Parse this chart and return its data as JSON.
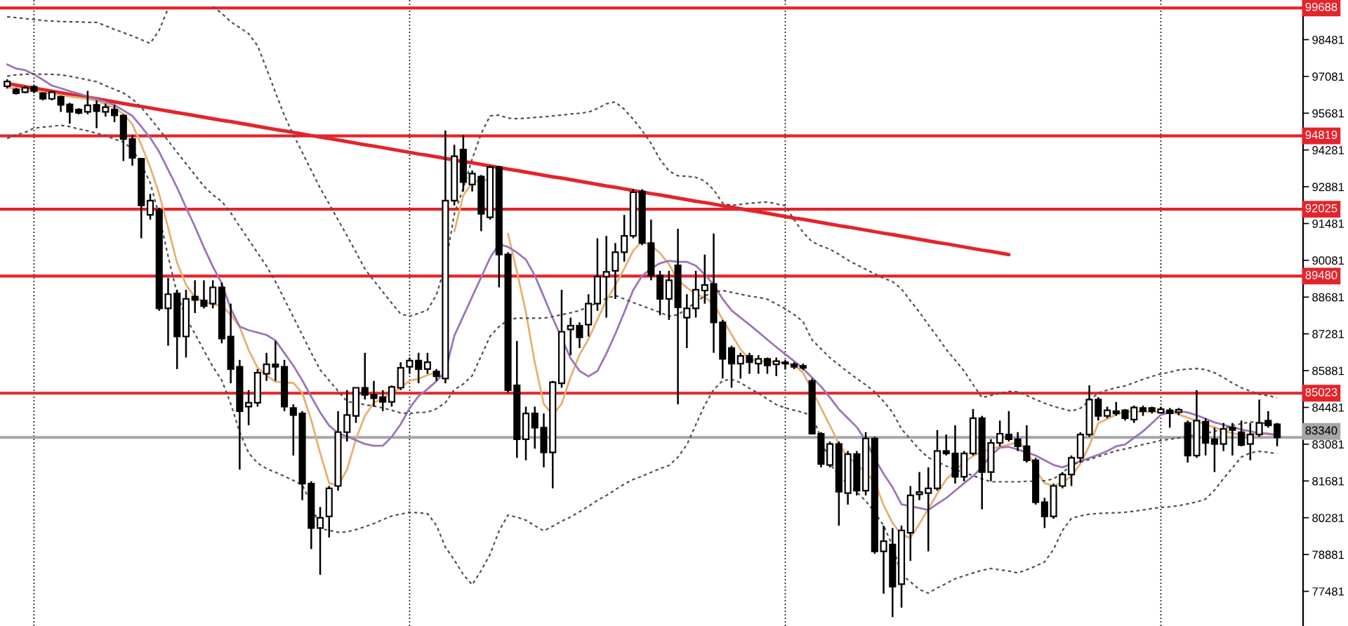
{
  "chart_data": {
    "type": "candlestick",
    "categories": [
      null,
      null,
      null,
      null,
      null,
      null,
      null,
      null,
      null,
      null,
      null,
      null,
      null,
      null,
      null,
      null,
      null,
      null,
      null,
      null,
      null,
      null,
      null,
      null,
      null,
      null,
      null,
      null,
      null,
      null,
      null,
      null,
      null,
      null,
      null,
      null,
      null,
      null,
      null,
      null,
      null,
      null,
      null,
      null,
      null,
      null,
      null,
      null,
      null,
      null,
      null,
      null,
      null,
      null,
      null,
      null,
      null,
      null,
      null,
      null,
      null,
      null,
      null,
      null,
      null,
      null,
      null,
      null,
      null,
      null,
      null,
      null,
      null,
      null,
      null,
      null,
      null,
      null,
      null,
      null,
      null,
      null,
      null,
      null,
      null,
      null,
      null,
      null,
      null,
      null,
      null,
      null,
      null,
      null,
      null,
      null,
      null,
      null,
      null,
      null,
      null,
      null,
      null,
      null,
      null,
      null,
      null,
      null,
      null,
      null,
      null,
      null,
      null,
      null,
      null,
      null,
      null,
      null,
      null,
      null,
      null,
      null,
      null,
      null,
      null,
      null,
      null,
      null,
      null,
      null,
      null,
      null,
      null,
      null,
      null,
      null,
      null,
      null,
      null,
      null,
      null,
      null,
      null
    ],
    "ohlc": [
      [
        96710,
        96970,
        96620,
        96890
      ],
      [
        96580,
        96650,
        96390,
        96440
      ],
      [
        96480,
        96710,
        96440,
        96650
      ],
      [
        96690,
        96740,
        96440,
        96530
      ],
      [
        96440,
        96480,
        96170,
        96230
      ],
      [
        96230,
        96530,
        96170,
        96480
      ],
      [
        96300,
        96350,
        95730,
        96000
      ],
      [
        96010,
        96080,
        95280,
        95730
      ],
      [
        95820,
        95870,
        95640,
        95690
      ],
      [
        95730,
        96530,
        95640,
        95980
      ],
      [
        96000,
        96170,
        95110,
        95760
      ],
      [
        95730,
        96050,
        95550,
        95910
      ],
      [
        95820,
        96000,
        95340,
        95600
      ],
      [
        95590,
        95640,
        93860,
        94700
      ],
      [
        94700,
        94840,
        93680,
        93980
      ],
      [
        93950,
        93980,
        90920,
        92170
      ],
      [
        91810,
        92610,
        91630,
        92350
      ],
      [
        91990,
        92080,
        88160,
        88250
      ],
      [
        88250,
        89410,
        86830,
        88790
      ],
      [
        88820,
        88960,
        85940,
        87180
      ],
      [
        87180,
        88960,
        86380,
        88610
      ],
      [
        88700,
        89320,
        88070,
        88570
      ],
      [
        88550,
        89320,
        88250,
        88340
      ],
      [
        88430,
        89320,
        88250,
        89050
      ],
      [
        89050,
        89230,
        86920,
        87100
      ],
      [
        87180,
        88430,
        85400,
        85940
      ],
      [
        86030,
        86290,
        82110,
        84340
      ],
      [
        84510,
        85140,
        83800,
        84660
      ],
      [
        84660,
        85940,
        84510,
        85800
      ],
      [
        85760,
        86560,
        85490,
        86120
      ],
      [
        86120,
        87010,
        85490,
        86030
      ],
      [
        86030,
        86290,
        84340,
        84510
      ],
      [
        84460,
        84600,
        82650,
        84190
      ],
      [
        84250,
        84340,
        80950,
        81580
      ],
      [
        81580,
        81670,
        79090,
        79890
      ],
      [
        79890,
        80690,
        78110,
        80280
      ],
      [
        80330,
        81490,
        79530,
        81400
      ],
      [
        81490,
        84340,
        81310,
        83540
      ],
      [
        83540,
        85140,
        83180,
        84190
      ],
      [
        84160,
        85230,
        83890,
        85230
      ],
      [
        85230,
        86560,
        84780,
        84960
      ],
      [
        84960,
        85490,
        84510,
        84830
      ],
      [
        84870,
        85140,
        84340,
        84690
      ],
      [
        84690,
        85320,
        84510,
        85260
      ],
      [
        85230,
        86200,
        85140,
        85990
      ],
      [
        86030,
        86380,
        85760,
        86260
      ],
      [
        86260,
        86560,
        85400,
        85940
      ],
      [
        85940,
        86560,
        85760,
        86200
      ],
      [
        85850,
        85940,
        85490,
        85670
      ],
      [
        85580,
        95020,
        85400,
        92350
      ],
      [
        92350,
        94480,
        92170,
        94040
      ],
      [
        94300,
        94840,
        92700,
        93060
      ],
      [
        92970,
        93500,
        92700,
        93380
      ],
      [
        93270,
        93330,
        91190,
        91850
      ],
      [
        91720,
        93680,
        91630,
        93630
      ],
      [
        93630,
        93680,
        89050,
        90300
      ],
      [
        90300,
        90390,
        85050,
        85140
      ],
      [
        85320,
        87010,
        82560,
        83270
      ],
      [
        83270,
        84510,
        82470,
        84250
      ],
      [
        84250,
        84510,
        82910,
        83710
      ],
      [
        83710,
        84250,
        82200,
        82770
      ],
      [
        82770,
        85490,
        81400,
        85440
      ],
      [
        85400,
        88960,
        85230,
        87360
      ],
      [
        87450,
        87900,
        86470,
        87590
      ],
      [
        87590,
        87720,
        86740,
        87150
      ],
      [
        87630,
        88790,
        87180,
        88430
      ],
      [
        88430,
        90920,
        88160,
        89460
      ],
      [
        89460,
        91010,
        87900,
        89640
      ],
      [
        89680,
        90740,
        88610,
        90390
      ],
      [
        90390,
        91810,
        90030,
        91010
      ],
      [
        91010,
        92790,
        90920,
        92670
      ],
      [
        92700,
        92790,
        90660,
        90740
      ],
      [
        90740,
        91630,
        89320,
        89500
      ],
      [
        89500,
        89680,
        87990,
        88610
      ],
      [
        88610,
        89680,
        87810,
        89320
      ],
      [
        89890,
        91280,
        84600,
        88290
      ],
      [
        87900,
        88790,
        86740,
        88250
      ],
      [
        88250,
        89680,
        87900,
        88960
      ],
      [
        88930,
        90300,
        88430,
        89140
      ],
      [
        89180,
        91100,
        86560,
        87720
      ],
      [
        87720,
        87810,
        85580,
        86330
      ],
      [
        86740,
        86830,
        85230,
        86150
      ],
      [
        86150,
        86560,
        85580,
        86440
      ],
      [
        86440,
        86560,
        85760,
        86200
      ],
      [
        86150,
        86470,
        85760,
        86330
      ],
      [
        86330,
        86380,
        85760,
        86080
      ],
      [
        86120,
        86380,
        85670,
        86240
      ],
      [
        86200,
        86290,
        85940,
        86150
      ],
      [
        86120,
        86200,
        85940,
        86030
      ],
      [
        86060,
        86150,
        85900,
        85990
      ],
      [
        85490,
        85580,
        83450,
        83480
      ],
      [
        83480,
        83540,
        82200,
        82330
      ],
      [
        82290,
        83180,
        82200,
        83090
      ],
      [
        83090,
        83180,
        79980,
        81270
      ],
      [
        81220,
        82820,
        80780,
        82700
      ],
      [
        82700,
        82820,
        81130,
        81310
      ],
      [
        81310,
        83540,
        81130,
        83300
      ],
      [
        83300,
        83360,
        78910,
        79000
      ],
      [
        79000,
        79980,
        77390,
        79390
      ],
      [
        79260,
        79890,
        76500,
        77660
      ],
      [
        77750,
        79980,
        76860,
        79800
      ],
      [
        79710,
        81490,
        78640,
        81130
      ],
      [
        81170,
        82020,
        80950,
        81260
      ],
      [
        81220,
        82200,
        79000,
        81400
      ],
      [
        81400,
        83620,
        81310,
        82820
      ],
      [
        82820,
        83450,
        82650,
        82730
      ],
      [
        82730,
        83800,
        81580,
        81840
      ],
      [
        81840,
        82820,
        81670,
        82730
      ],
      [
        82730,
        84420,
        82650,
        84070
      ],
      [
        84070,
        84160,
        80600,
        82020
      ],
      [
        82020,
        83270,
        81670,
        83130
      ],
      [
        83130,
        83980,
        83000,
        83480
      ],
      [
        83450,
        84340,
        83180,
        83270
      ],
      [
        83270,
        83540,
        82820,
        83000
      ],
      [
        83000,
        83800,
        82380,
        82470
      ],
      [
        82470,
        82560,
        80780,
        80870
      ],
      [
        80870,
        81040,
        79890,
        80330
      ],
      [
        80330,
        81580,
        80240,
        81490
      ],
      [
        81490,
        82020,
        81400,
        81930
      ],
      [
        81930,
        82650,
        81490,
        82560
      ],
      [
        82560,
        83540,
        82380,
        83450
      ],
      [
        83450,
        85320,
        83360,
        84780
      ],
      [
        84780,
        84870,
        83980,
        84160
      ],
      [
        84160,
        84510,
        84070,
        84370
      ],
      [
        84340,
        84690,
        84160,
        84250
      ],
      [
        84370,
        84420,
        83980,
        84070
      ],
      [
        84020,
        84550,
        83890,
        84480
      ],
      [
        84460,
        84550,
        84160,
        84340
      ],
      [
        84460,
        84510,
        84250,
        84340
      ],
      [
        84280,
        84510,
        84250,
        84410
      ],
      [
        84370,
        84460,
        83710,
        84260
      ],
      [
        84300,
        84460,
        84190,
        84390
      ],
      [
        83890,
        83980,
        82380,
        82650
      ],
      [
        82650,
        85140,
        82560,
        83980
      ],
      [
        83940,
        84070,
        82650,
        83130
      ],
      [
        83270,
        83710,
        82020,
        83090
      ],
      [
        83090,
        83890,
        82820,
        83660
      ],
      [
        83710,
        83890,
        82650,
        83620
      ],
      [
        83540,
        83980,
        83000,
        83050
      ],
      [
        83090,
        83890,
        82470,
        83450
      ],
      [
        83450,
        84780,
        83360,
        83890
      ],
      [
        83980,
        84340,
        83710,
        83800
      ],
      [
        83840,
        83890,
        83000,
        83340
      ]
    ],
    "colors": [
      "#ffffff",
      "#000000",
      "#ffffff",
      "#000000",
      "#000000",
      "#ffffff",
      "#000000",
      "#000000",
      "#000000",
      "#ffffff",
      "#000000",
      "#ffffff",
      "#000000",
      "#000000",
      "#000000",
      "#000000",
      "#ffffff",
      "#000000",
      "#ffffff",
      "#000000",
      "#ffffff",
      "#000000",
      "#000000",
      "#ffffff",
      "#000000",
      "#000000",
      "#000000",
      "#ffffff",
      "#ffffff",
      "#ffffff",
      "#000000",
      "#000000",
      "#000000",
      "#000000",
      "#000000",
      "#ffffff",
      "#ffffff",
      "#ffffff",
      "#ffffff",
      "#ffffff",
      "#000000",
      "#000000",
      "#000000",
      "#ffffff",
      "#ffffff",
      "#ffffff",
      "#000000",
      "#ffffff",
      "#000000",
      "#ffffff",
      "#ffffff",
      "#000000",
      "#ffffff",
      "#000000",
      "#ffffff",
      "#000000",
      "#000000",
      "#000000",
      "#ffffff",
      "#000000",
      "#000000",
      "#ffffff",
      "#ffffff",
      "#ffffff",
      "#000000",
      "#ffffff",
      "#ffffff",
      "#ffffff",
      "#ffffff",
      "#ffffff",
      "#ffffff",
      "#000000",
      "#000000",
      "#000000",
      "#ffffff",
      "#000000",
      "#ffffff",
      "#ffffff",
      "#ffffff",
      "#000000",
      "#000000",
      "#000000",
      "#ffffff",
      "#000000",
      "#ffffff",
      "#000000",
      "#ffffff",
      "#000000",
      "#000000",
      "#000000",
      "#000000",
      "#000000",
      "#ffffff",
      "#000000",
      "#ffffff",
      "#000000",
      "#ffffff",
      "#000000",
      "#ffffff",
      "#000000",
      "#ffffff",
      "#ffffff",
      "#ffffff",
      "#ffffff",
      "#ffffff",
      "#000000",
      "#000000",
      "#ffffff",
      "#ffffff",
      "#000000",
      "#ffffff",
      "#ffffff",
      "#000000",
      "#000000",
      "#000000",
      "#000000",
      "#000000",
      "#ffffff",
      "#ffffff",
      "#ffffff",
      "#ffffff",
      "#ffffff",
      "#000000",
      "#ffffff",
      "#000000",
      "#000000",
      "#ffffff",
      "#000000",
      "#000000",
      "#ffffff",
      "#000000",
      "#ffffff",
      "#000000",
      "#ffffff",
      "#000000",
      "#000000",
      "#ffffff",
      "#000000",
      "#000000",
      "#ffffff",
      "#ffffff",
      "#000000",
      "#000000"
    ],
    "series": [
      {
        "type": "line",
        "color": "#e3242b",
        "line_style": "solid",
        "values": [
          96810,
          96750,
          96690,
          96630,
          96580,
          96520,
          96460,
          96400,
          96340,
          96290,
          96230,
          96170,
          96110,
          96050,
          95990,
          95940,
          95880,
          95820,
          95760,
          95700,
          95650,
          95590,
          95530,
          95470,
          95410,
          95360,
          95300,
          95240,
          95180,
          95120,
          95060,
          95010,
          94950,
          94890,
          94830,
          94770,
          94720,
          94660,
          94600,
          94540,
          94480,
          94430,
          94370,
          94310,
          94250,
          94190,
          94130,
          94080,
          94020,
          93960,
          93900,
          93840,
          93790,
          93730,
          93670,
          93610,
          93550,
          93500,
          93440,
          93380,
          93320,
          93260,
          93210,
          93150,
          93090,
          93030,
          92970,
          92910,
          92860,
          92800,
          92740,
          92680,
          92620,
          92570,
          92510,
          92450,
          92390,
          92330,
          92280,
          92220,
          92160,
          92100,
          92040,
          91980,
          91930,
          91870,
          91810,
          91750,
          91690,
          91640,
          91580,
          91520,
          91460,
          91400,
          91350,
          91290,
          91230,
          91170,
          91110,
          91060,
          91000,
          90940,
          90880,
          90820,
          90760,
          90710,
          90650,
          90590,
          90530,
          90470,
          90420,
          90360,
          90300,
          null,
          null,
          null,
          null,
          null,
          null,
          null,
          null,
          null,
          null,
          null,
          null,
          null,
          null,
          null,
          null,
          null,
          null,
          null,
          null,
          null,
          null,
          null,
          null,
          null,
          null,
          null,
          null,
          null,
          null
        ]
      },
      {
        "type": "line",
        "color": "#e6b070",
        "line_style": "solid",
        "values": [
          96660,
          96630,
          96570,
          96520,
          96470,
          96410,
          96360,
          96310,
          96270,
          96220,
          96160,
          96020,
          95880,
          95650,
          95260,
          94470,
          93620,
          92600,
          91320,
          89980,
          89150,
          88670,
          88510,
          88400,
          88350,
          88010,
          87540,
          86670,
          85990,
          85690,
          85460,
          85430,
          85410,
          85030,
          84000,
          82740,
          81600,
          81510,
          82110,
          83270,
          84160,
          84660,
          84820,
          85030,
          85230,
          85500,
          85570,
          85710,
          85820,
          null,
          91180,
          92550,
          93030,
          93150,
          93120,
          null,
          91090,
          89650,
          88110,
          86190,
          84610,
          84200,
          84620,
          85640,
          86490,
          87080,
          87830,
          88560,
          89130,
          89770,
          90450,
          90800,
          90640,
          90360,
          89930,
          89330,
          89040,
          88790,
          88670,
          88420,
          87830,
          87260,
          86690,
          86320,
          86240,
          86230,
          86210,
          86160,
          86080,
          85800,
          85140,
          84460,
          83790,
          83090,
          82590,
          82330,
          81990,
          81650,
          80760,
          80080,
          79640,
          79510,
          80050,
          80620,
          81200,
          81740,
          82080,
          82400,
          82630,
          82790,
          82900,
          82980,
          83070,
          83150,
          82910,
          82090,
          81600,
          81490,
          81630,
          81860,
          82340,
          83020,
          83880,
          84040,
          84210,
          84320,
          84320,
          84320,
          84320,
          84320,
          84320,
          84210,
          84090,
          83960,
          83820,
          83730,
          83590,
          83500,
          83430,
          83450,
          83500,
          83500,
          83430
        ]
      },
      {
        "type": "line",
        "color": "#9b75b8",
        "line_style": "solid",
        "values": [
          97540,
          97380,
          97320,
          97160,
          96950,
          96730,
          96630,
          96520,
          96430,
          96320,
          96220,
          96110,
          95990,
          95790,
          95580,
          95170,
          94740,
          94210,
          93530,
          92850,
          92090,
          91360,
          90570,
          89840,
          89200,
          88240,
          87560,
          87420,
          87330,
          87240,
          87030,
          86550,
          86070,
          85510,
          84890,
          84290,
          83790,
          83500,
          83380,
          83230,
          83090,
          83020,
          83020,
          83360,
          83840,
          84450,
          84910,
          85180,
          85480,
          85850,
          87210,
          87950,
          88700,
          89430,
          90180,
          90700,
          90590,
          90380,
          90110,
          89500,
          88700,
          87880,
          87120,
          86350,
          85870,
          85660,
          85870,
          86530,
          87280,
          88100,
          88950,
          89490,
          89770,
          89970,
          90060,
          90020,
          90020,
          89880,
          89540,
          89150,
          88610,
          88170,
          87900,
          87630,
          87350,
          87060,
          86780,
          86510,
          86240,
          85960,
          85620,
          85280,
          84860,
          84410,
          84070,
          83730,
          83220,
          82540,
          81950,
          81440,
          80790,
          80720,
          80650,
          80580,
          80810,
          81030,
          81310,
          81600,
          81860,
          82220,
          82660,
          82950,
          82980,
          82880,
          82770,
          82650,
          82470,
          82290,
          82200,
          82330,
          82430,
          82560,
          82680,
          82820,
          83000,
          83070,
          83320,
          83570,
          83880,
          84200,
          84290,
          84340,
          84290,
          84180,
          84050,
          83910,
          83820,
          83730,
          83640,
          83570,
          83500,
          83470,
          83430
        ]
      },
      {
        "type": "line",
        "color": "#505050",
        "line_style": "dotted",
        "values": [
          99350,
          99320,
          99280,
          99250,
          99210,
          99190,
          99170,
          99160,
          99160,
          99140,
          99140,
          99010,
          98870,
          98750,
          98620,
          98480,
          98340,
          98840,
          99670,
          null,
          null,
          null,
          null,
          99740,
          99480,
          99160,
          98940,
          98710,
          98250,
          97380,
          96470,
          95590,
          94860,
          94190,
          93510,
          92830,
          92230,
          91620,
          91020,
          90390,
          89750,
          89310,
          88880,
          88450,
          88040,
          87950,
          88060,
          88190,
          88770,
          89900,
          91850,
          92820,
          93940,
          94900,
          95580,
          95610,
          95490,
          95470,
          95490,
          95520,
          95540,
          95580,
          95610,
          95650,
          95680,
          95720,
          95860,
          96040,
          96110,
          95830,
          95450,
          95020,
          94530,
          93920,
          93480,
          93300,
          93280,
          93240,
          93100,
          92760,
          92260,
          92170,
          92210,
          92250,
          92280,
          92300,
          92230,
          92160,
          91620,
          91140,
          90790,
          90630,
          90500,
          90310,
          90090,
          89910,
          89740,
          89570,
          89400,
          89270,
          88990,
          88540,
          88110,
          87630,
          87170,
          86690,
          86280,
          85870,
          85350,
          84850,
          84940,
          85020,
          85090,
          85070,
          84930,
          84780,
          84640,
          84520,
          84430,
          84340,
          84450,
          84730,
          85030,
          85140,
          85230,
          85300,
          85420,
          85550,
          85660,
          85760,
          85820,
          85910,
          85940,
          85960,
          85920,
          85800,
          85620,
          85410,
          85230,
          85100,
          84980,
          84930,
          84850
        ]
      },
      {
        "type": "line",
        "color": "#505050",
        "line_style": "dotted",
        "values": [
          97090,
          97140,
          97160,
          97180,
          97160,
          97160,
          97140,
          97090,
          97020,
          96950,
          96880,
          96730,
          96590,
          96450,
          96220,
          95900,
          95490,
          95060,
          94630,
          94190,
          93760,
          93330,
          92900,
          92570,
          92320,
          91890,
          91370,
          90870,
          90360,
          89860,
          89270,
          88600,
          87920,
          87240,
          86560,
          85910,
          85510,
          85100,
          84710,
          84640,
          84590,
          84530,
          84460,
          84370,
          84270,
          84250,
          84290,
          84300,
          84430,
          84660,
          85160,
          85370,
          85690,
          86440,
          87190,
          87560,
          87810,
          87880,
          87880,
          87880,
          87880,
          87940,
          88010,
          88080,
          88170,
          88310,
          88470,
          88630,
          88740,
          88610,
          88470,
          88350,
          88220,
          88100,
          87950,
          88010,
          88240,
          88490,
          88720,
          88880,
          88930,
          88860,
          88790,
          88720,
          88670,
          88600,
          88420,
          88240,
          88010,
          87740,
          87050,
          86710,
          86370,
          86100,
          85830,
          85580,
          85340,
          85070,
          84710,
          84290,
          83660,
          83270,
          82880,
          82570,
          82410,
          82250,
          82110,
          82010,
          81880,
          81760,
          81650,
          81650,
          81650,
          81650,
          81670,
          81670,
          81690,
          81760,
          81990,
          82290,
          82400,
          82500,
          82610,
          82720,
          82830,
          82900,
          82980,
          83070,
          83140,
          83220,
          83270,
          83320,
          83380,
          83430,
          83500,
          83570,
          83680,
          83790,
          83860,
          83930,
          83890,
          83860,
          83790
        ]
      },
      {
        "type": "line",
        "color": "#505050",
        "line_style": "dotted",
        "values": [
          94720,
          94850,
          94950,
          95110,
          95150,
          95180,
          95220,
          95170,
          95080,
          95010,
          94920,
          94830,
          94690,
          94580,
          94310,
          93740,
          93030,
          91770,
          90230,
          88810,
          87900,
          87280,
          86650,
          86030,
          85510,
          84620,
          83540,
          82750,
          82360,
          82150,
          82010,
          81860,
          81700,
          81520,
          80830,
          79870,
          79800,
          79730,
          79740,
          79830,
          79940,
          80060,
          80210,
          80350,
          80420,
          80490,
          80470,
          80440,
          79990,
          79160,
          78670,
          78120,
          77730,
          78270,
          78890,
          79780,
          80380,
          80300,
          80190,
          79980,
          79780,
          79960,
          80150,
          80310,
          80510,
          80720,
          80940,
          81130,
          81350,
          81560,
          81740,
          81860,
          82010,
          82150,
          82270,
          82590,
          83060,
          83820,
          84570,
          85160,
          85500,
          85550,
          85420,
          85210,
          85020,
          84800,
          84590,
          84460,
          84370,
          84290,
          84160,
          83320,
          82340,
          81880,
          81580,
          81260,
          80920,
          80490,
          79980,
          79210,
          78120,
          77840,
          77550,
          77410,
          77610,
          77780,
          77960,
          78070,
          78180,
          78280,
          78350,
          78300,
          78250,
          78180,
          78300,
          78440,
          78600,
          79080,
          79800,
          80260,
          80350,
          80420,
          80440,
          80460,
          80470,
          80490,
          80530,
          80580,
          80630,
          80670,
          80700,
          80740,
          80810,
          80880,
          80990,
          81330,
          81770,
          82180,
          82590,
          82750,
          82810,
          82770,
          82720
        ]
      }
    ],
    "ylim": [
      76160,
      99990
    ],
    "yticks": [
      77481,
      78881,
      80281,
      81681,
      83081,
      84481,
      85881,
      87281,
      88681,
      90081,
      91481,
      92881,
      94281,
      95681,
      97081,
      98481
    ],
    "ref_lines": [
      {
        "axis": "y",
        "value": 99688,
        "label": "99688",
        "color": "#e3242b"
      },
      {
        "axis": "y",
        "value": 94819,
        "label": "94819",
        "color": "#e3242b"
      },
      {
        "axis": "y",
        "value": 92025,
        "label": "92025",
        "color": "#e3242b"
      },
      {
        "axis": "y",
        "value": 89480,
        "label": "89480",
        "color": "#e3242b"
      },
      {
        "axis": "y",
        "value": 85023,
        "label": "85023",
        "color": "#e3242b"
      },
      {
        "axis": "y",
        "value": 83340,
        "label": "83340",
        "color": "#a6a6a6"
      }
    ],
    "tick_labels": "y"
  }
}
